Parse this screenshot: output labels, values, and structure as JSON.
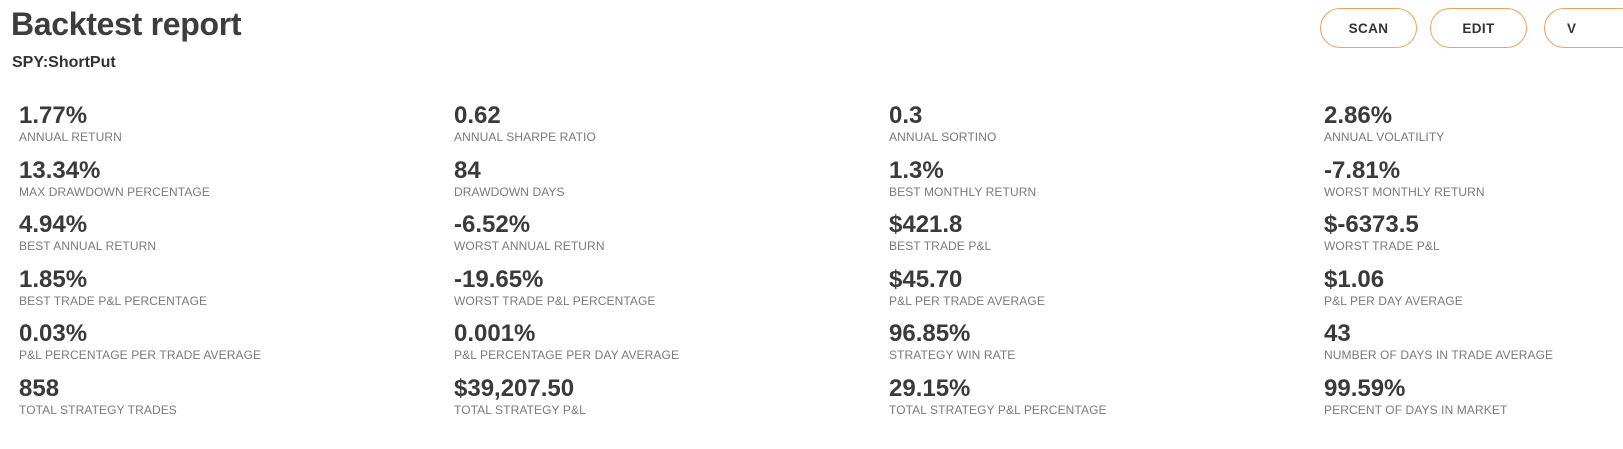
{
  "header": {
    "title": "Backtest report",
    "subtitle": "SPY:ShortPut"
  },
  "actions": {
    "scan_label": "SCAN",
    "edit_label": "EDIT",
    "view_label": "V"
  },
  "colors": {
    "accent_border": "#f0a35a",
    "value_text": "#3a3a3a",
    "label_text": "#7a7a7a"
  },
  "metrics": [
    {
      "value": "1.77%",
      "label": "ANNUAL RETURN"
    },
    {
      "value": "0.62",
      "label": "ANNUAL SHARPE RATIO"
    },
    {
      "value": "0.3",
      "label": "ANNUAL SORTINO"
    },
    {
      "value": "2.86%",
      "label": "ANNUAL VOLATILITY"
    },
    {
      "value": "13.34%",
      "label": "MAX DRAWDOWN PERCENTAGE"
    },
    {
      "value": "84",
      "label": "DRAWDOWN DAYS"
    },
    {
      "value": "1.3%",
      "label": "BEST MONTHLY RETURN"
    },
    {
      "value": "-7.81%",
      "label": "WORST MONTHLY RETURN"
    },
    {
      "value": "4.94%",
      "label": "BEST ANNUAL RETURN"
    },
    {
      "value": "-6.52%",
      "label": "WORST ANNUAL RETURN"
    },
    {
      "value": "$421.8",
      "label": "BEST TRADE P&L"
    },
    {
      "value": "$-6373.5",
      "label": "WORST TRADE P&L"
    },
    {
      "value": "1.85%",
      "label": "BEST TRADE P&L PERCENTAGE"
    },
    {
      "value": "-19.65%",
      "label": "WORST TRADE P&L PERCENTAGE"
    },
    {
      "value": "$45.70",
      "label": "P&L PER TRADE AVERAGE"
    },
    {
      "value": "$1.06",
      "label": "P&L PER DAY AVERAGE"
    },
    {
      "value": "0.03%",
      "label": "P&L PERCENTAGE PER TRADE AVERAGE"
    },
    {
      "value": "0.001%",
      "label": "P&L PERCENTAGE PER DAY AVERAGE"
    },
    {
      "value": "96.85%",
      "label": "STRATEGY WIN RATE"
    },
    {
      "value": "43",
      "label": "NUMBER OF DAYS IN TRADE AVERAGE"
    },
    {
      "value": "858",
      "label": "TOTAL STRATEGY TRADES"
    },
    {
      "value": "$39,207.50",
      "label": "TOTAL STRATEGY P&L"
    },
    {
      "value": "29.15%",
      "label": "TOTAL STRATEGY P&L PERCENTAGE"
    },
    {
      "value": "99.59%",
      "label": "PERCENT OF DAYS IN MARKET"
    }
  ]
}
